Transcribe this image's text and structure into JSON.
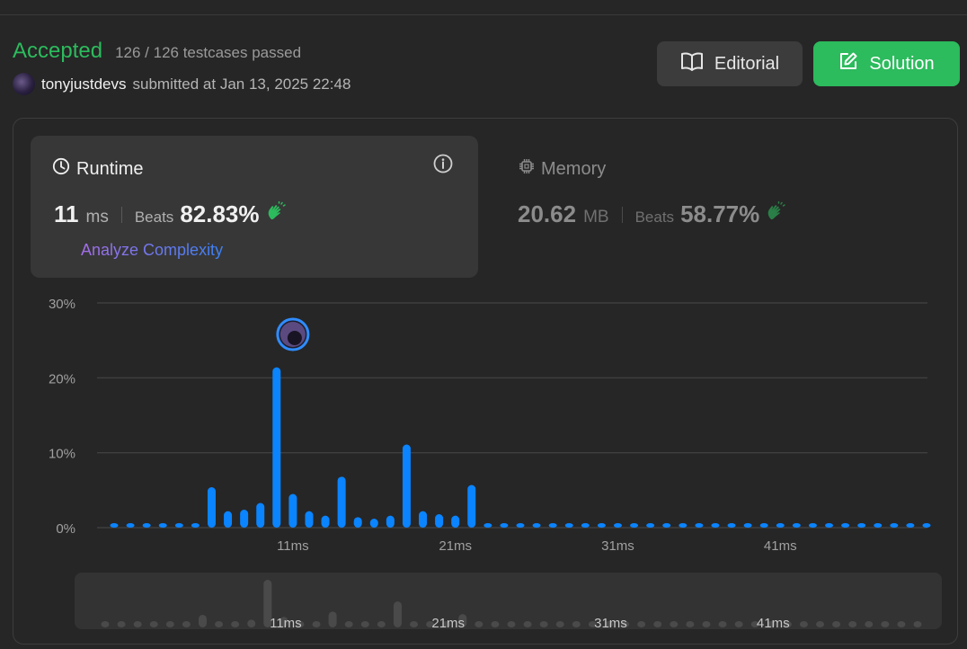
{
  "submission": {
    "status": "Accepted",
    "testcases": "126 / 126 testcases passed",
    "username": "tonyjustdevs",
    "submitted_text": "submitted at Jan 13, 2025 22:48"
  },
  "buttons": {
    "editorial": "Editorial",
    "solution": "Solution"
  },
  "runtime": {
    "title": "Runtime",
    "value": "11",
    "unit": "ms",
    "beats_label": "Beats",
    "beats": "82.83%",
    "analyze": "Analyze Complexity"
  },
  "memory": {
    "title": "Memory",
    "value": "20.62",
    "unit": "MB",
    "beats_label": "Beats",
    "beats": "58.77%"
  },
  "colors": {
    "accent_green": "#2cbb5d",
    "bar_blue": "#0a84ff",
    "mini_bar": "#4a4a4a"
  },
  "chart_data": {
    "type": "bar",
    "x": [
      0,
      1,
      2,
      3,
      4,
      5,
      6,
      7,
      8,
      9,
      10,
      11,
      12,
      13,
      14,
      15,
      16,
      17,
      18,
      19,
      20,
      21,
      22,
      23,
      24,
      25,
      26,
      27,
      28,
      29,
      30,
      31,
      32,
      33,
      34,
      35,
      36,
      37,
      38,
      39,
      40,
      41,
      42,
      43,
      44,
      45,
      46,
      47,
      48,
      49,
      50
    ],
    "values": [
      0.6,
      0.6,
      0.6,
      0.6,
      0.6,
      0.6,
      5.4,
      2.2,
      2.4,
      3.3,
      21.4,
      4.5,
      2.2,
      1.6,
      6.8,
      1.4,
      1.2,
      1.6,
      11.1,
      2.2,
      1.8,
      1.6,
      5.7,
      0.6,
      0.6,
      0.6,
      0.6,
      0.6,
      0.6,
      0.6,
      0.6,
      0.6,
      0.6,
      0.6,
      0.6,
      0.6,
      0.6,
      0.6,
      0.6,
      0.6,
      0.6,
      0.6,
      0.6,
      0.6,
      0.6,
      0.6,
      0.6,
      0.6,
      0.6,
      0.6,
      0.6
    ],
    "highlight_x": 11,
    "ylim": [
      0,
      30
    ],
    "yticks": [
      "0%",
      "10%",
      "20%",
      "30%"
    ],
    "xticks": [
      {
        "x": 11,
        "label": "11ms"
      },
      {
        "x": 21,
        "label": "21ms"
      },
      {
        "x": 31,
        "label": "31ms"
      },
      {
        "x": 41,
        "label": "41ms"
      }
    ],
    "grid": true,
    "legend": "none"
  }
}
